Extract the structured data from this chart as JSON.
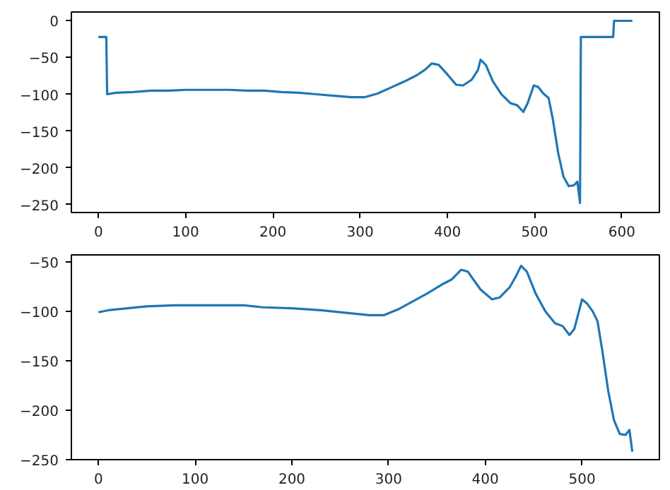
{
  "chart_data": [
    {
      "type": "line",
      "x": [
        0,
        9,
        10,
        20,
        40,
        60,
        80,
        100,
        150,
        170,
        190,
        210,
        230,
        250,
        270,
        290,
        305,
        320,
        335,
        350,
        365,
        375,
        382,
        390,
        400,
        410,
        418,
        428,
        435,
        438,
        444,
        452,
        462,
        472,
        480,
        487,
        492,
        499,
        504,
        510,
        516,
        521,
        527,
        533,
        539,
        545,
        549,
        552,
        553,
        590,
        591,
        612
      ],
      "series": [
        {
          "color": "#1f77b4",
          "values": [
            -22,
            -22,
            -100,
            -98,
            -97,
            -95,
            -95,
            -94,
            -94,
            -95,
            -95,
            -97,
            -98,
            -100,
            -102,
            -104,
            -104,
            -99,
            -91,
            -83,
            -74,
            -66,
            -58,
            -60,
            -73,
            -87,
            -88,
            -80,
            -67,
            -53,
            -60,
            -82,
            -100,
            -112,
            -115,
            -124,
            -112,
            -88,
            -90,
            -99,
            -105,
            -135,
            -180,
            -212,
            -225,
            -224,
            -219,
            -248,
            -22,
            -22,
            0,
            0
          ]
        }
      ],
      "xlim": [
        -31,
        643
      ],
      "ylim": [
        -261,
        12
      ],
      "xticks": [
        0,
        100,
        200,
        300,
        400,
        500,
        600
      ],
      "yticks": [
        -250,
        -200,
        -150,
        -100,
        -50,
        0
      ],
      "grid": false,
      "line_style": "solid",
      "marker": "none"
    },
    {
      "type": "line",
      "x": [
        0,
        10,
        30,
        50,
        80,
        150,
        170,
        200,
        230,
        260,
        280,
        295,
        310,
        325,
        340,
        355,
        365,
        375,
        382,
        395,
        407,
        415,
        425,
        432,
        437,
        443,
        452,
        462,
        472,
        480,
        487,
        492,
        500,
        505,
        511,
        516,
        521,
        527,
        533,
        539,
        545,
        549,
        552
      ],
      "series": [
        {
          "color": "#1f77b4",
          "values": [
            -101,
            -99,
            -97,
            -95,
            -94,
            -94,
            -96,
            -97,
            -99,
            -102,
            -104,
            -104,
            -98,
            -90,
            -82,
            -73,
            -68,
            -58,
            -60,
            -78,
            -88,
            -86,
            -76,
            -64,
            -54,
            -60,
            -82,
            -100,
            -112,
            -115,
            -124,
            -118,
            -88,
            -92,
            -100,
            -110,
            -140,
            -180,
            -210,
            -224,
            -225,
            -220,
            -242
          ]
        }
      ],
      "xlim": [
        -28,
        580
      ],
      "ylim": [
        -250,
        -43
      ],
      "xticks": [
        0,
        100,
        200,
        300,
        400,
        500
      ],
      "yticks": [
        -250,
        -200,
        -150,
        -100,
        -50
      ],
      "grid": false,
      "line_style": "solid",
      "marker": "none"
    }
  ]
}
